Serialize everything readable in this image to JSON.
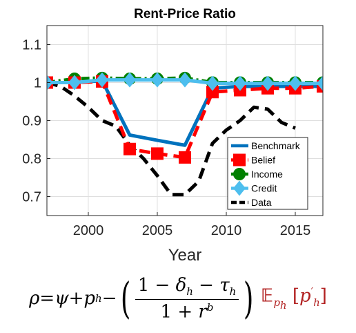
{
  "chart_data": {
    "type": "line",
    "title": "Rent-Price Ratio",
    "xlabel": "Year",
    "ylabel": "",
    "xlim": [
      1997,
      2017
    ],
    "ylim": [
      0.65,
      1.15
    ],
    "xticks": [
      2000,
      2005,
      2010,
      2015
    ],
    "yticks": [
      0.7,
      0.8,
      0.9,
      1,
      1.1
    ],
    "grid": true,
    "legend": "bottom-right",
    "series": [
      {
        "name": "Benchmark",
        "color": "#0072BD",
        "style": "solid",
        "marker": "none",
        "x": [
          1997,
          1999,
          2001,
          2003,
          2005,
          2007,
          2009,
          2011,
          2013,
          2015,
          2017
        ],
        "y": [
          1.0,
          1.0,
          1.005,
          0.862,
          0.848,
          0.835,
          0.985,
          0.99,
          0.99,
          0.99,
          0.99
        ]
      },
      {
        "name": "Belief",
        "color": "#FF0000",
        "style": "dashed",
        "marker": "square",
        "x": [
          1997,
          1999,
          2001,
          2003,
          2005,
          2007,
          2009,
          2011,
          2013,
          2015,
          2017
        ],
        "y": [
          1.0,
          1.0,
          1.003,
          0.825,
          0.813,
          0.803,
          0.975,
          0.98,
          0.985,
          0.985,
          0.99
        ]
      },
      {
        "name": "Income",
        "color": "#008000",
        "style": "dashdot",
        "marker": "circle",
        "x": [
          1997,
          1999,
          2001,
          2003,
          2005,
          2007,
          2009,
          2011,
          2013,
          2015,
          2017
        ],
        "y": [
          1.0,
          1.01,
          1.012,
          1.01,
          1.01,
          1.012,
          1.0,
          1.0,
          1.0,
          1.0,
          1.0
        ]
      },
      {
        "name": "Credit",
        "color": "#4DBEEE",
        "style": "solid",
        "marker": "diamond",
        "x": [
          1997,
          1999,
          2001,
          2003,
          2005,
          2007,
          2009,
          2011,
          2013,
          2015,
          2017
        ],
        "y": [
          1.0,
          1.0,
          1.007,
          1.007,
          1.007,
          1.007,
          0.998,
          0.998,
          0.998,
          0.998,
          0.998
        ]
      },
      {
        "name": "Data",
        "color": "#000000",
        "style": "dashed",
        "marker": "none",
        "x": [
          1997,
          1998,
          1999,
          2000,
          2001,
          2002,
          2003,
          2004,
          2005,
          2006,
          2007,
          2008,
          2009,
          2010,
          2011,
          2012,
          2013,
          2014,
          2015
        ],
        "y": [
          1.0,
          0.99,
          0.965,
          0.935,
          0.9,
          0.885,
          0.835,
          0.8,
          0.755,
          0.705,
          0.705,
          0.74,
          0.84,
          0.875,
          0.9,
          0.935,
          0.93,
          0.895,
          0.88
        ]
      }
    ]
  },
  "formula": {
    "rho": "ρ",
    "eq": " = ",
    "psi": "ψ",
    "plus": " + ",
    "p": "p",
    "sub_h": "h",
    "minus": " − ",
    "lparen": "(",
    "rparen": ")",
    "num_1": "1 − ",
    "delta": "δ",
    "num_mid": " − ",
    "tau": "τ",
    "den_1": "1 + ",
    "r": "r",
    "sup_b": "b",
    "E": "𝔼",
    "sub_ph": "p",
    "sub_ph_h": "h",
    "bracket_l": " [",
    "p_prime": "p",
    "prime": "′",
    "bracket_r": "]"
  }
}
